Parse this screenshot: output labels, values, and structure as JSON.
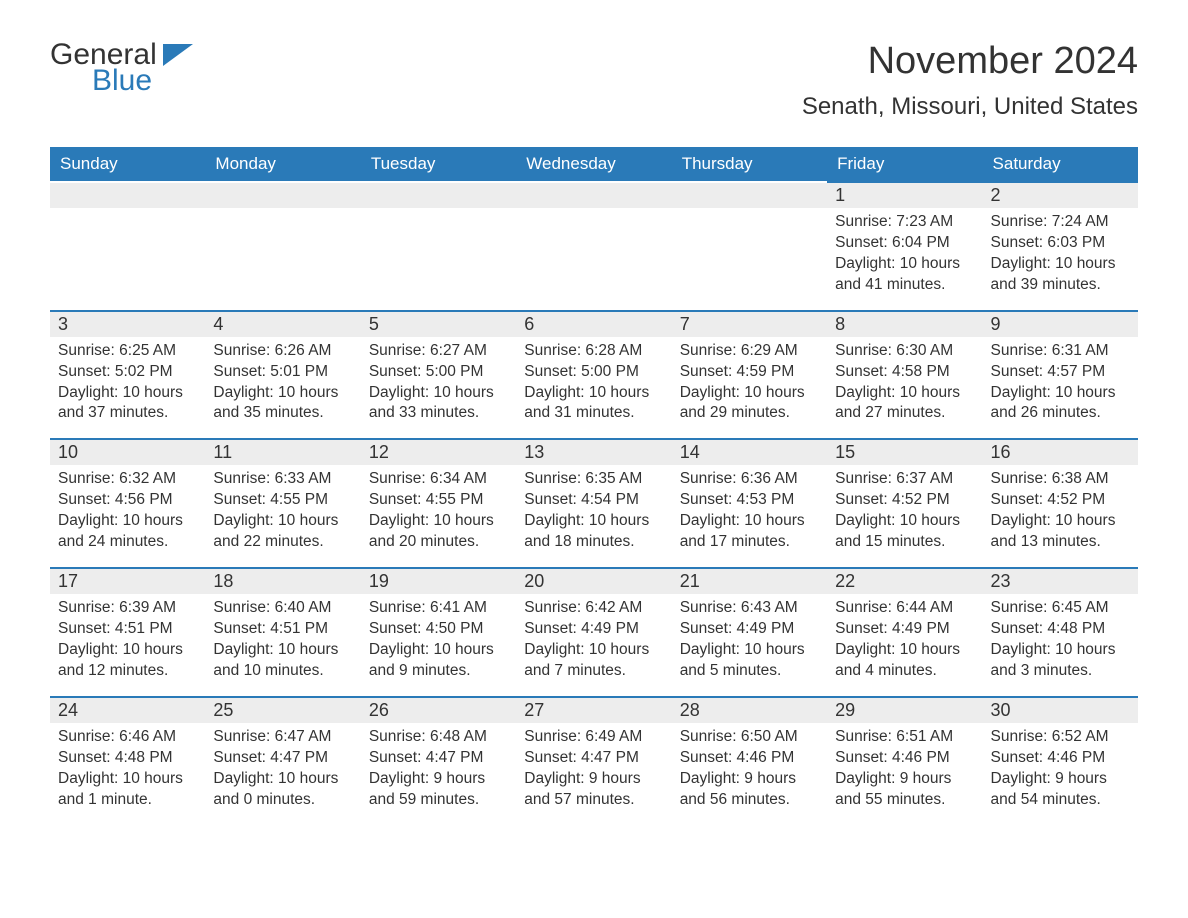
{
  "logo": {
    "word1": "General",
    "word2": "Blue"
  },
  "title": "November 2024",
  "location": "Senath, Missouri, United States",
  "colors": {
    "header_bg": "#2a7ab8",
    "header_text": "#ffffff",
    "daynum_bg": "#ededed",
    "border_top": "#2a7ab8",
    "body_text": "#333333",
    "page_bg": "#ffffff"
  },
  "weekdays": [
    "Sunday",
    "Monday",
    "Tuesday",
    "Wednesday",
    "Thursday",
    "Friday",
    "Saturday"
  ],
  "weeks": [
    [
      null,
      null,
      null,
      null,
      null,
      {
        "n": "1",
        "sunrise": "Sunrise: 7:23 AM",
        "sunset": "Sunset: 6:04 PM",
        "daylight": "Daylight: 10 hours and 41 minutes."
      },
      {
        "n": "2",
        "sunrise": "Sunrise: 7:24 AM",
        "sunset": "Sunset: 6:03 PM",
        "daylight": "Daylight: 10 hours and 39 minutes."
      }
    ],
    [
      {
        "n": "3",
        "sunrise": "Sunrise: 6:25 AM",
        "sunset": "Sunset: 5:02 PM",
        "daylight": "Daylight: 10 hours and 37 minutes."
      },
      {
        "n": "4",
        "sunrise": "Sunrise: 6:26 AM",
        "sunset": "Sunset: 5:01 PM",
        "daylight": "Daylight: 10 hours and 35 minutes."
      },
      {
        "n": "5",
        "sunrise": "Sunrise: 6:27 AM",
        "sunset": "Sunset: 5:00 PM",
        "daylight": "Daylight: 10 hours and 33 minutes."
      },
      {
        "n": "6",
        "sunrise": "Sunrise: 6:28 AM",
        "sunset": "Sunset: 5:00 PM",
        "daylight": "Daylight: 10 hours and 31 minutes."
      },
      {
        "n": "7",
        "sunrise": "Sunrise: 6:29 AM",
        "sunset": "Sunset: 4:59 PM",
        "daylight": "Daylight: 10 hours and 29 minutes."
      },
      {
        "n": "8",
        "sunrise": "Sunrise: 6:30 AM",
        "sunset": "Sunset: 4:58 PM",
        "daylight": "Daylight: 10 hours and 27 minutes."
      },
      {
        "n": "9",
        "sunrise": "Sunrise: 6:31 AM",
        "sunset": "Sunset: 4:57 PM",
        "daylight": "Daylight: 10 hours and 26 minutes."
      }
    ],
    [
      {
        "n": "10",
        "sunrise": "Sunrise: 6:32 AM",
        "sunset": "Sunset: 4:56 PM",
        "daylight": "Daylight: 10 hours and 24 minutes."
      },
      {
        "n": "11",
        "sunrise": "Sunrise: 6:33 AM",
        "sunset": "Sunset: 4:55 PM",
        "daylight": "Daylight: 10 hours and 22 minutes."
      },
      {
        "n": "12",
        "sunrise": "Sunrise: 6:34 AM",
        "sunset": "Sunset: 4:55 PM",
        "daylight": "Daylight: 10 hours and 20 minutes."
      },
      {
        "n": "13",
        "sunrise": "Sunrise: 6:35 AM",
        "sunset": "Sunset: 4:54 PM",
        "daylight": "Daylight: 10 hours and 18 minutes."
      },
      {
        "n": "14",
        "sunrise": "Sunrise: 6:36 AM",
        "sunset": "Sunset: 4:53 PM",
        "daylight": "Daylight: 10 hours and 17 minutes."
      },
      {
        "n": "15",
        "sunrise": "Sunrise: 6:37 AM",
        "sunset": "Sunset: 4:52 PM",
        "daylight": "Daylight: 10 hours and 15 minutes."
      },
      {
        "n": "16",
        "sunrise": "Sunrise: 6:38 AM",
        "sunset": "Sunset: 4:52 PM",
        "daylight": "Daylight: 10 hours and 13 minutes."
      }
    ],
    [
      {
        "n": "17",
        "sunrise": "Sunrise: 6:39 AM",
        "sunset": "Sunset: 4:51 PM",
        "daylight": "Daylight: 10 hours and 12 minutes."
      },
      {
        "n": "18",
        "sunrise": "Sunrise: 6:40 AM",
        "sunset": "Sunset: 4:51 PM",
        "daylight": "Daylight: 10 hours and 10 minutes."
      },
      {
        "n": "19",
        "sunrise": "Sunrise: 6:41 AM",
        "sunset": "Sunset: 4:50 PM",
        "daylight": "Daylight: 10 hours and 9 minutes."
      },
      {
        "n": "20",
        "sunrise": "Sunrise: 6:42 AM",
        "sunset": "Sunset: 4:49 PM",
        "daylight": "Daylight: 10 hours and 7 minutes."
      },
      {
        "n": "21",
        "sunrise": "Sunrise: 6:43 AM",
        "sunset": "Sunset: 4:49 PM",
        "daylight": "Daylight: 10 hours and 5 minutes."
      },
      {
        "n": "22",
        "sunrise": "Sunrise: 6:44 AM",
        "sunset": "Sunset: 4:49 PM",
        "daylight": "Daylight: 10 hours and 4 minutes."
      },
      {
        "n": "23",
        "sunrise": "Sunrise: 6:45 AM",
        "sunset": "Sunset: 4:48 PM",
        "daylight": "Daylight: 10 hours and 3 minutes."
      }
    ],
    [
      {
        "n": "24",
        "sunrise": "Sunrise: 6:46 AM",
        "sunset": "Sunset: 4:48 PM",
        "daylight": "Daylight: 10 hours and 1 minute."
      },
      {
        "n": "25",
        "sunrise": "Sunrise: 6:47 AM",
        "sunset": "Sunset: 4:47 PM",
        "daylight": "Daylight: 10 hours and 0 minutes."
      },
      {
        "n": "26",
        "sunrise": "Sunrise: 6:48 AM",
        "sunset": "Sunset: 4:47 PM",
        "daylight": "Daylight: 9 hours and 59 minutes."
      },
      {
        "n": "27",
        "sunrise": "Sunrise: 6:49 AM",
        "sunset": "Sunset: 4:47 PM",
        "daylight": "Daylight: 9 hours and 57 minutes."
      },
      {
        "n": "28",
        "sunrise": "Sunrise: 6:50 AM",
        "sunset": "Sunset: 4:46 PM",
        "daylight": "Daylight: 9 hours and 56 minutes."
      },
      {
        "n": "29",
        "sunrise": "Sunrise: 6:51 AM",
        "sunset": "Sunset: 4:46 PM",
        "daylight": "Daylight: 9 hours and 55 minutes."
      },
      {
        "n": "30",
        "sunrise": "Sunrise: 6:52 AM",
        "sunset": "Sunset: 4:46 PM",
        "daylight": "Daylight: 9 hours and 54 minutes."
      }
    ]
  ]
}
